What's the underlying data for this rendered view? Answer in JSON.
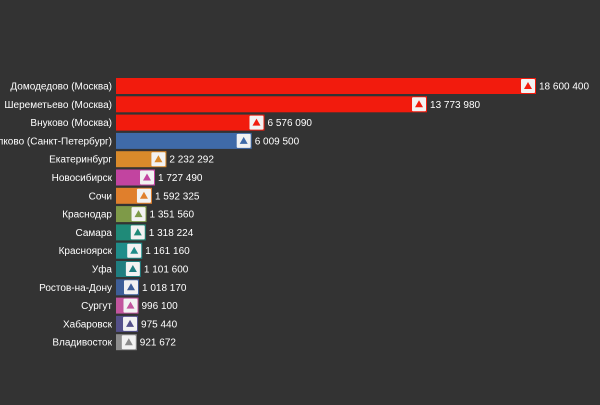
{
  "chart_data": {
    "type": "bar",
    "orientation": "horizontal",
    "grid": false,
    "legend": "none",
    "xlim": [
      0,
      18600400
    ],
    "categories": [
      "Домодедово (Москва)",
      "Шереметьево (Москва)",
      "Внуково (Москва)",
      "Пулково (Санкт-Петербург)",
      "Екатеринбург",
      "Новосибирск",
      "Сочи",
      "Краснодар",
      "Самара",
      "Красноярск",
      "Уфа",
      "Ростов-на-Дону",
      "Сургут",
      "Хабаровск",
      "Владивосток"
    ],
    "values": [
      18600400,
      13773980,
      6576090,
      6009500,
      2232292,
      1727490,
      1592325,
      1351560,
      1318224,
      1161160,
      1101600,
      1018170,
      996100,
      975440,
      921672
    ],
    "value_labels": [
      "18 600 400",
      "13 773 980",
      "6 576 090",
      "6 009 500",
      "2 232 292",
      "1 727 490",
      "1 592 325",
      "1 351 560",
      "1 318 224",
      "1 161 160",
      "1 101 600",
      "1 018 170",
      "996 100",
      "975 440",
      "921 672"
    ],
    "colors": [
      "#f21b0d",
      "#f21b0d",
      "#f21b0d",
      "#3f6aa8",
      "#d98a2b",
      "#c244a0",
      "#e07f2c",
      "#7e9a48",
      "#1f8a78",
      "#1f8d8a",
      "#1f7e80",
      "#3d5e98",
      "#c2559e",
      "#54508a",
      "#8c8c8c"
    ],
    "icons": [
      "airport-logo-icon",
      "airport-logo-icon",
      "airport-logo-icon",
      "airport-logo-icon",
      "airport-logo-icon",
      "airport-logo-icon",
      "airport-logo-icon",
      "airport-logo-icon",
      "airport-logo-icon",
      "airport-logo-icon",
      "airport-logo-icon",
      "airport-logo-icon",
      "airport-logo-icon",
      "airport-logo-icon",
      "airport-logo-icon"
    ]
  },
  "colors": {
    "background": "#333333",
    "label_text": "#ffffff",
    "icon_background": "#f2f2f2"
  }
}
